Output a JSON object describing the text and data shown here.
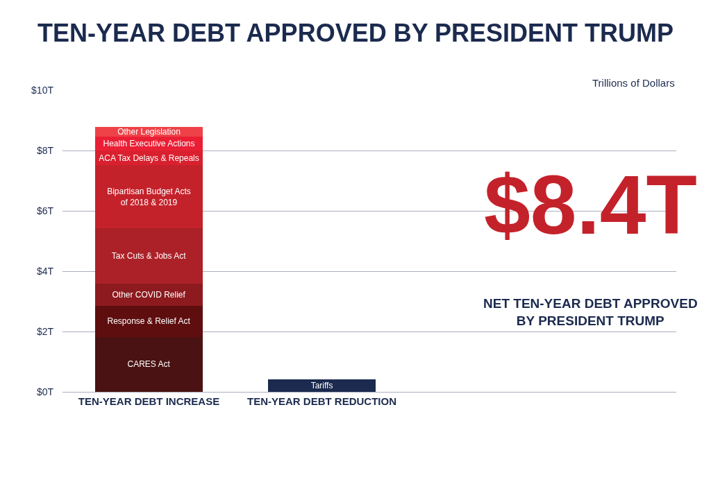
{
  "chart_data": {
    "type": "bar",
    "title": "TEN-YEAR DEBT APPROVED BY PRESIDENT TRUMP",
    "stacked": true,
    "categories": [
      "TEN-YEAR DEBT INCREASE",
      "TEN-YEAR DEBT REDUCTION"
    ],
    "series": [
      {
        "name": "CARES Act",
        "color": "#4a1212",
        "values": [
          1.82,
          null
        ]
      },
      {
        "name": "Response & Relief Act",
        "color": "#5e0e0e",
        "values": [
          1.03,
          null
        ]
      },
      {
        "name": "Other COVID Relief",
        "color": "#8c1a1e",
        "values": [
          0.74,
          null
        ]
      },
      {
        "name": "Tax Cuts & Jobs Act",
        "color": "#ac2128",
        "values": [
          1.83,
          null
        ]
      },
      {
        "name": "Bipartisan Budget Acts\nof 2018 & 2019",
        "color": "#c4222b",
        "values": [
          2.09,
          null
        ]
      },
      {
        "name": "ACA Tax Delays & Repeals",
        "color": "#d9202e",
        "values": [
          0.48,
          null
        ]
      },
      {
        "name": "Health Executive Actions",
        "color": "#ea1f35",
        "values": [
          0.48,
          null
        ]
      },
      {
        "name": "Other Legislation",
        "color": "#ee4248",
        "values": [
          0.32,
          null
        ]
      },
      {
        "name": "Tariffs",
        "color": "#1b2a4e",
        "values": [
          null,
          0.42
        ]
      }
    ],
    "ylim": [
      0,
      10
    ],
    "yticks": [
      {
        "value": 0,
        "label": "$0T"
      },
      {
        "value": 2,
        "label": "$2T"
      },
      {
        "value": 4,
        "label": "$4T"
      },
      {
        "value": 6,
        "label": "$6T"
      },
      {
        "value": 8,
        "label": "$8T"
      },
      {
        "value": 10,
        "label": "$10T"
      }
    ],
    "grid": "y",
    "legend": false,
    "annotations": [
      "Trillions of Dollars",
      "$8.4T",
      "NET TEN-YEAR DEBT APPROVED\nBY PRESIDENT TRUMP"
    ]
  }
}
